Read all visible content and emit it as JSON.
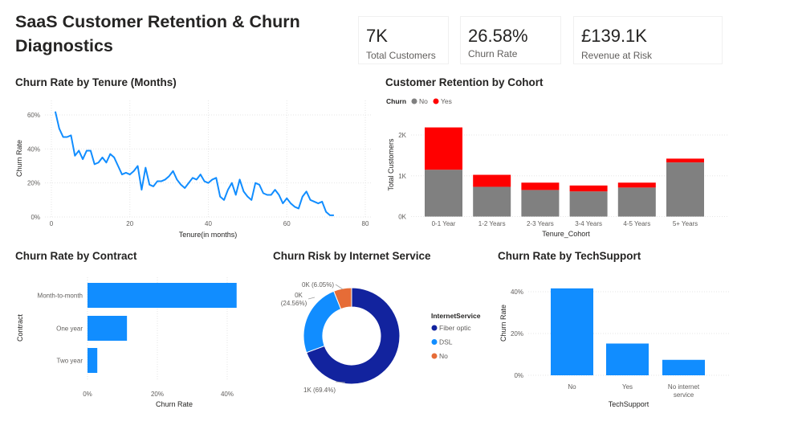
{
  "page_title": "SaaS Customer Retention & Churn Diagnostics",
  "kpis": [
    {
      "value": "7K",
      "label": "Total Customers"
    },
    {
      "value": "26.58%",
      "label": "Churn Rate"
    },
    {
      "value": "£139.1K",
      "label": "Revenue at Risk"
    }
  ],
  "colors": {
    "blue": "#118dff",
    "navy": "#12239e",
    "orange": "#e66c37",
    "grey": "#808080",
    "red": "#ff0000"
  },
  "chart_data": [
    {
      "id": "tenure",
      "type": "line",
      "title": "Churn Rate by Tenure (Months)",
      "xlabel": "Tenure(in months)",
      "ylabel": "Churn Rate",
      "xlim": [
        0,
        80
      ],
      "ylim": [
        0,
        0.65
      ],
      "x_ticks": [
        0,
        20,
        40,
        60,
        80
      ],
      "y_ticks": [
        0,
        0.2,
        0.4,
        0.6
      ],
      "y_tick_labels": [
        "0%",
        "20%",
        "40%",
        "60%"
      ],
      "x": [
        1,
        2,
        3,
        4,
        5,
        6,
        7,
        8,
        9,
        10,
        11,
        12,
        13,
        14,
        15,
        16,
        17,
        18,
        19,
        20,
        21,
        22,
        23,
        24,
        25,
        26,
        27,
        28,
        29,
        30,
        31,
        32,
        33,
        34,
        35,
        36,
        37,
        38,
        39,
        40,
        41,
        42,
        43,
        44,
        45,
        46,
        47,
        48,
        49,
        50,
        51,
        52,
        53,
        54,
        55,
        56,
        57,
        58,
        59,
        60,
        61,
        62,
        63,
        64,
        65,
        66,
        67,
        68,
        69,
        70,
        71,
        72
      ],
      "values": [
        0.62,
        0.52,
        0.47,
        0.47,
        0.48,
        0.36,
        0.39,
        0.34,
        0.39,
        0.39,
        0.31,
        0.32,
        0.35,
        0.32,
        0.37,
        0.35,
        0.3,
        0.25,
        0.26,
        0.25,
        0.27,
        0.3,
        0.16,
        0.29,
        0.19,
        0.18,
        0.21,
        0.21,
        0.22,
        0.24,
        0.27,
        0.22,
        0.19,
        0.17,
        0.2,
        0.23,
        0.22,
        0.25,
        0.21,
        0.2,
        0.22,
        0.23,
        0.12,
        0.1,
        0.16,
        0.2,
        0.13,
        0.22,
        0.15,
        0.12,
        0.1,
        0.2,
        0.19,
        0.14,
        0.13,
        0.13,
        0.16,
        0.13,
        0.08,
        0.11,
        0.08,
        0.06,
        0.05,
        0.12,
        0.15,
        0.1,
        0.09,
        0.08,
        0.09,
        0.03,
        0.01,
        0.01
      ],
      "color": "#118dff"
    },
    {
      "id": "cohort",
      "type": "bar",
      "stacked": true,
      "title": "Customer Retention by Cohort",
      "xlabel": "Tenure_Cohort",
      "ylabel": "Total Customers",
      "legend_title": "Churn",
      "legend_position": "top-left",
      "categories": [
        "0-1 Year",
        "1-2 Years",
        "2-3 Years",
        "3-4 Years",
        "4-5 Years",
        "5+ Years"
      ],
      "series": [
        {
          "name": "No",
          "values": [
            1149,
            730,
            652,
            617,
            712,
            1328
          ],
          "color": "#808080"
        },
        {
          "name": "Yes",
          "values": [
            1037,
            294,
            180,
            145,
            120,
            93
          ],
          "color": "#ff0000"
        }
      ],
      "ylim": [
        0,
        2400
      ],
      "y_ticks": [
        0,
        1000,
        2000
      ],
      "y_tick_labels": [
        "0K",
        "1K",
        "2K"
      ]
    },
    {
      "id": "contract",
      "type": "bar",
      "orientation": "horizontal",
      "title": "Churn Rate by Contract",
      "xlabel": "Churn Rate",
      "ylabel": "Contract",
      "categories": [
        "Month-to-month",
        "One year",
        "Two year"
      ],
      "values": [
        0.427,
        0.113,
        0.028
      ],
      "xlim": [
        0,
        0.44
      ],
      "x_ticks": [
        0,
        0.2,
        0.4
      ],
      "x_tick_labels": [
        "0%",
        "20%",
        "40%"
      ],
      "color": "#118dff"
    },
    {
      "id": "internet",
      "type": "pie",
      "donut": true,
      "title": "Churn Risk by Internet Service",
      "legend_title": "InternetService",
      "legend_position": "right",
      "categories": [
        "Fiber optic",
        "DSL",
        "No"
      ],
      "values": [
        0.694,
        0.2456,
        0.0605
      ],
      "data_labels": [
        "1K (69.4%)",
        "0K (24.56%)",
        "0K (6.05%)"
      ],
      "colors": [
        "#12239e",
        "#118dff",
        "#e66c37"
      ]
    },
    {
      "id": "techsupport",
      "type": "bar",
      "title": "Churn Rate by TechSupport",
      "xlabel": "TechSupport",
      "ylabel": "Churn Rate",
      "categories": [
        "No",
        "Yes",
        "No internet service"
      ],
      "category_label_lines": [
        [
          "No"
        ],
        [
          "Yes"
        ],
        [
          "No internet",
          "service"
        ]
      ],
      "values": [
        0.416,
        0.152,
        0.074
      ],
      "ylim": [
        0,
        0.44
      ],
      "y_ticks": [
        0,
        0.2,
        0.4
      ],
      "y_tick_labels": [
        "0%",
        "20%",
        "40%"
      ],
      "color": "#118dff"
    }
  ]
}
